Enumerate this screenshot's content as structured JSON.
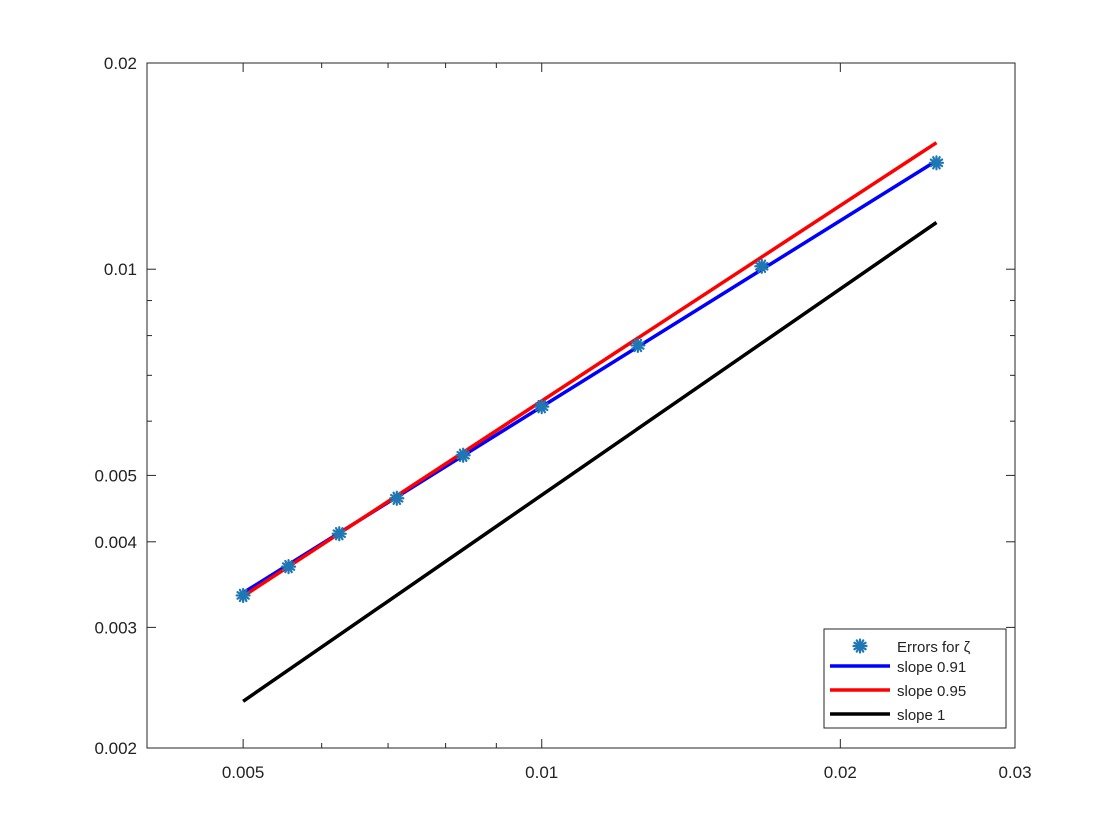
{
  "chart_data": {
    "type": "line",
    "title": "",
    "xlabel": "",
    "ylabel": "",
    "xscale": "log",
    "yscale": "log",
    "xlim": [
      0.004,
      0.03
    ],
    "ylim": [
      0.002,
      0.02
    ],
    "xticks": [
      0.005,
      0.01,
      0.02,
      0.03
    ],
    "xtick_labels": [
      "0.005",
      "0.01",
      "0.02",
      "0.03"
    ],
    "yticks": [
      0.002,
      0.003,
      0.004,
      0.005,
      0.01,
      0.02
    ],
    "ytick_labels": [
      "0.002",
      "0.003",
      "0.004",
      "0.005",
      "0.01",
      "0.02"
    ],
    "grid": false,
    "legend_position": "bottom-right",
    "series": [
      {
        "name": "Errors for ζ",
        "kind": "markers",
        "marker": "asterisk",
        "color": "#1f77b4",
        "x": [
          0.005,
          0.005556,
          0.00625,
          0.007143,
          0.008333,
          0.01,
          0.0125,
          0.016667,
          0.025
        ],
        "y": [
          0.00334,
          0.00368,
          0.00411,
          0.00463,
          0.00535,
          0.0063,
          0.00774,
          0.0101,
          0.0143
        ]
      },
      {
        "name": "slope 0.91",
        "kind": "line",
        "color": "#0000ff",
        "x": [
          0.005,
          0.025
        ],
        "y": [
          0.00337,
          0.0144
        ]
      },
      {
        "name": "slope 0.95",
        "kind": "line",
        "color": "#ff0000",
        "x": [
          0.005,
          0.025
        ],
        "y": [
          0.00333,
          0.0153
        ]
      },
      {
        "name": "slope 1",
        "kind": "line",
        "color": "#000000",
        "x": [
          0.005,
          0.025
        ],
        "y": [
          0.00234,
          0.0117
        ]
      }
    ]
  }
}
